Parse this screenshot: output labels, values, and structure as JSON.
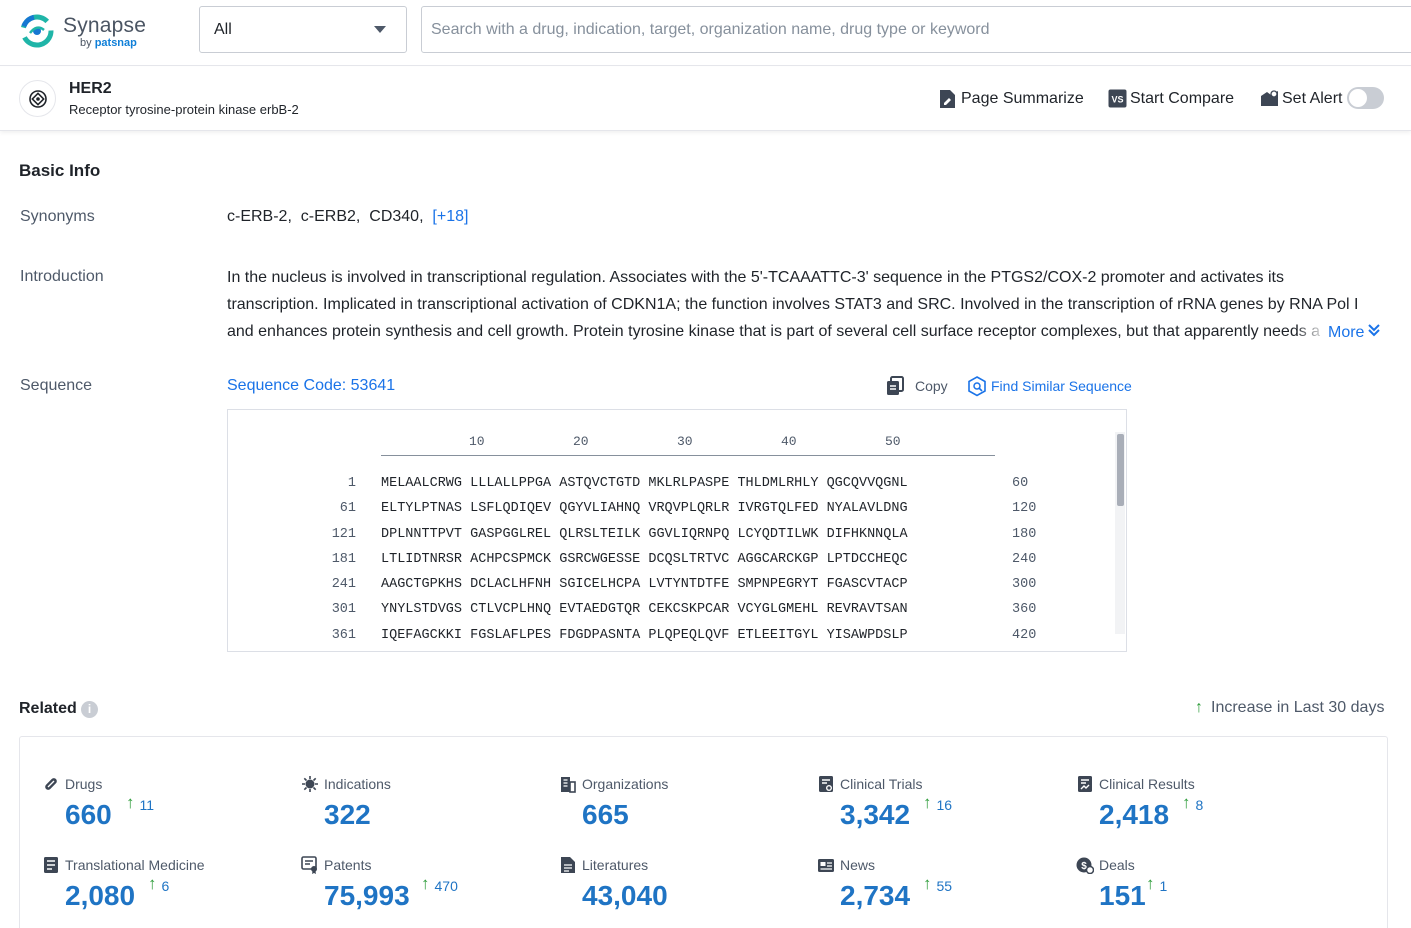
{
  "header": {
    "brand": "Synapse",
    "by_text": "by",
    "by_brand": "patsnap",
    "search_scope": "All",
    "search_placeholder": "Search with a drug, indication, target, organization name, drug type or keyword"
  },
  "target": {
    "name": "HER2",
    "full_name": "Receptor tyrosine-protein kinase erbB-2",
    "actions": {
      "summarize": "Page Summarize",
      "compare": "Start Compare",
      "alert": "Set Alert"
    },
    "alert_enabled": false
  },
  "basic_info": {
    "title": "Basic Info",
    "synonyms_label": "Synonyms",
    "synonyms": [
      "c-ERB-2,",
      "c-ERB2,",
      "CD340,"
    ],
    "synonyms_more": "[+18]",
    "introduction_label": "Introduction",
    "introduction": "In the nucleus is involved in transcriptional regulation. Associates with the 5'-TCAAATTC-3' sequence in the PTGS2/COX-2 promoter and activates its transcription. Implicated in transcriptional activation of CDKN1A; the function involves STAT3 and SRC. Involved in the transcription of rRNA genes by RNA Pol I and enhances protein synthesis and cell growth. Protein tyrosine kinase that is part of several cell surface receptor complexes, but that apparently needs a coreceptor for ligand binding.",
    "introduction_more": "More",
    "sequence_label": "Sequence",
    "sequence_code": "Sequence Code: 53641",
    "copy": "Copy",
    "find_similar": "Find Similar Sequence",
    "ruler": [
      "10",
      "20",
      "30",
      "40",
      "50"
    ],
    "sequence_lines": [
      {
        "start": "1",
        "seq": "MELAALCRWG LLLALLPPGA ASTQVCTGTD MKLRLPASPE THLDMLRHLY QGCQVVQGNL",
        "end": "60"
      },
      {
        "start": "61",
        "seq": "ELTYLPTNAS LSFLQDIQEV QGYVLIAHNQ VRQVPLQRLR IVRGTQLFED NYALAVLDNG",
        "end": "120"
      },
      {
        "start": "121",
        "seq": "DPLNNTTPVT GASPGGLREL QLRSLTEILK GGVLIQRNPQ LCYQDTILWK DIFHKNNQLA",
        "end": "180"
      },
      {
        "start": "181",
        "seq": "LTLIDTNRSR ACHPCSPMCK GSRCWGESSE DCQSLTRTVC AGGCARCKGP LPTDCCHEQC",
        "end": "240"
      },
      {
        "start": "241",
        "seq": "AAGCTGPKHS DCLACLHFNH SGICELHCPA LVTYNTDTFE SMPNPEGRYT FGASCVTACP",
        "end": "300"
      },
      {
        "start": "301",
        "seq": "YNYLSTDVGS CTLVCPLHNQ EVTAEDGTQR CEKCSKPCAR VCYGLGMEHL REVRAVTSAN",
        "end": "360"
      },
      {
        "start": "361",
        "seq": "IQEFAGCKKI FGSLAFLPES FDGDPASNTA PLQPEQLQVF ETLEEITGYL YISAWPDSLP",
        "end": "420"
      }
    ]
  },
  "related": {
    "title": "Related",
    "increase_note": "Increase in Last 30 days",
    "items": [
      {
        "name": "Drugs",
        "count": "660",
        "increase": "11",
        "icon": "pill-icon"
      },
      {
        "name": "Indications",
        "count": "322",
        "increase": "",
        "icon": "virus-icon"
      },
      {
        "name": "Organizations",
        "count": "665",
        "increase": "",
        "icon": "building-icon"
      },
      {
        "name": "Clinical Trials",
        "count": "3,342",
        "increase": "16",
        "icon": "clinical-trials-icon"
      },
      {
        "name": "Clinical Results",
        "count": "2,418",
        "increase": "8",
        "icon": "clinical-results-icon"
      },
      {
        "name": "Translational Medicine",
        "count": "2,080",
        "increase": "6",
        "icon": "translational-medicine-icon"
      },
      {
        "name": "Patents",
        "count": "75,993",
        "increase": "470",
        "icon": "patent-icon"
      },
      {
        "name": "Literatures",
        "count": "43,040",
        "increase": "",
        "icon": "literature-icon"
      },
      {
        "name": "News",
        "count": "2,734",
        "increase": "55",
        "icon": "news-icon"
      },
      {
        "name": "Deals",
        "count": "151",
        "increase": "1",
        "icon": "deals-icon"
      }
    ]
  },
  "colors": {
    "link": "#1a73e8",
    "count": "#1f74c4",
    "increase_arrow": "#2e9c3a"
  }
}
